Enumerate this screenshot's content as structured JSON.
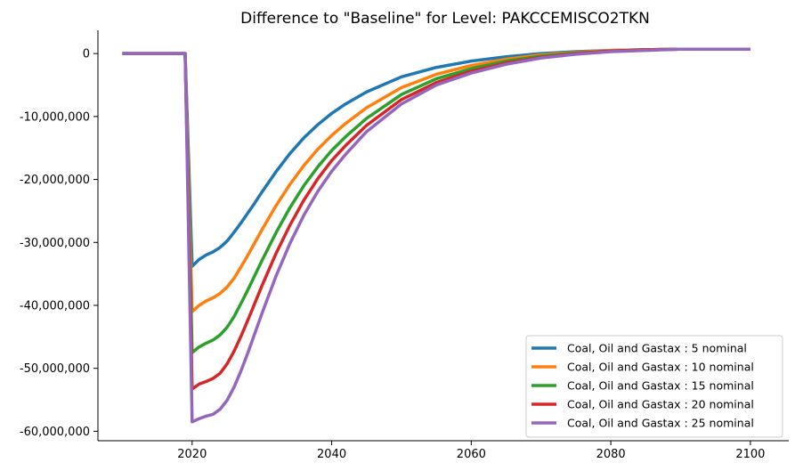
{
  "chart_data": {
    "type": "line",
    "title": "Difference to \"Baseline\" for Level: PAKCCEMISCO2TKN",
    "xlabel": "",
    "ylabel": "",
    "xlim": [
      2006.5,
      2105.5
    ],
    "ylim": [
      -61500000,
      3700000
    ],
    "x_ticks": [
      2020,
      2040,
      2060,
      2080,
      2100
    ],
    "x_tick_labels": [
      "2020",
      "2040",
      "2060",
      "2080",
      "2100"
    ],
    "y_ticks": [
      0,
      -10000000,
      -20000000,
      -30000000,
      -40000000,
      -50000000,
      -60000000
    ],
    "y_tick_labels": [
      "0",
      "-10,000,000",
      "-20,000,000",
      "-30,000,000",
      "-40,000,000",
      "-50,000,000",
      "-60,000,000"
    ],
    "grid": false,
    "legend_position": "lower-right",
    "x": [
      2010,
      2015,
      2019,
      2020,
      2021,
      2022,
      2023,
      2024,
      2025,
      2026,
      2027,
      2028,
      2029,
      2030,
      2032,
      2034,
      2036,
      2038,
      2040,
      2042,
      2045,
      2050,
      2055,
      2060,
      2065,
      2070,
      2075,
      2080,
      2085,
      2090,
      2095,
      2100
    ],
    "series": [
      {
        "name": "Coal, Oil and Gastax : 5 nominal",
        "color": "#1f77b4",
        "values": [
          0,
          0,
          0,
          -33800000,
          -32700000,
          -32000000,
          -31500000,
          -30800000,
          -29800000,
          -28400000,
          -26900000,
          -25300000,
          -23700000,
          -22000000,
          -18800000,
          -15900000,
          -13400000,
          -11300000,
          -9500000,
          -8000000,
          -6100000,
          -3700000,
          -2200000,
          -1200000,
          -500000,
          0,
          300000,
          500000,
          600000,
          700000,
          700000,
          700000
        ]
      },
      {
        "name": "Coal, Oil and Gastax : 10 nominal",
        "color": "#ff7f0e",
        "values": [
          0,
          0,
          0,
          -41000000,
          -40000000,
          -39300000,
          -38800000,
          -38100000,
          -37100000,
          -35700000,
          -33900000,
          -32000000,
          -30000000,
          -28000000,
          -24200000,
          -20800000,
          -17800000,
          -15200000,
          -13000000,
          -11100000,
          -8600000,
          -5400000,
          -3300000,
          -1900000,
          -900000,
          -200000,
          200000,
          500000,
          600000,
          700000,
          700000,
          700000
        ]
      },
      {
        "name": "Coal, Oil and Gastax : 15 nominal",
        "color": "#2ca02c",
        "values": [
          0,
          0,
          0,
          -47500000,
          -46600000,
          -46000000,
          -45500000,
          -44700000,
          -43500000,
          -41800000,
          -39700000,
          -37500000,
          -35200000,
          -32900000,
          -28500000,
          -24500000,
          -21000000,
          -18000000,
          -15400000,
          -13200000,
          -10300000,
          -6500000,
          -4000000,
          -2400000,
          -1200000,
          -400000,
          100000,
          400000,
          600000,
          700000,
          700000,
          700000
        ]
      },
      {
        "name": "Coal, Oil and Gastax : 20 nominal",
        "color": "#d62728",
        "values": [
          0,
          0,
          0,
          -53300000,
          -52500000,
          -52100000,
          -51600000,
          -50800000,
          -49300000,
          -47300000,
          -44900000,
          -42300000,
          -39600000,
          -36900000,
          -31800000,
          -27300000,
          -23300000,
          -19900000,
          -17000000,
          -14600000,
          -11400000,
          -7300000,
          -4600000,
          -2800000,
          -1500000,
          -600000,
          0,
          400000,
          600000,
          700000,
          700000,
          700000
        ]
      },
      {
        "name": "Coal, Oil and Gastax : 25 nominal",
        "color": "#9467bd",
        "values": [
          0,
          0,
          0,
          -58500000,
          -58000000,
          -57600000,
          -57300000,
          -56500000,
          -55100000,
          -53000000,
          -50400000,
          -47500000,
          -44400000,
          -41300000,
          -35400000,
          -30200000,
          -25700000,
          -21900000,
          -18700000,
          -16000000,
          -12400000,
          -8000000,
          -5000000,
          -3100000,
          -1700000,
          -700000,
          -100000,
          300000,
          500000,
          700000,
          700000,
          700000
        ]
      }
    ]
  }
}
